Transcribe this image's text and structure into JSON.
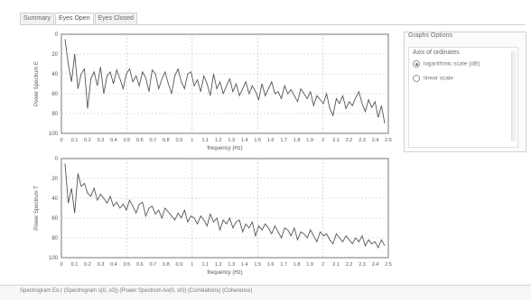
{
  "tabs": [
    {
      "label": "Summary",
      "active": false
    },
    {
      "label": "Eyes Open",
      "active": true
    },
    {
      "label": "Eyes Closed",
      "active": false
    }
  ],
  "graph_options": {
    "title": "Graphs Options",
    "section_label": "Axis of ordinates",
    "options": [
      {
        "label": "logarithmic scale (dB)",
        "selected": true
      },
      {
        "label": "linear scale",
        "selected": false
      }
    ]
  },
  "status_bar": {
    "text": "Spectrogram Eo.r  (Spectrogram s(0, s0)) (Power Spectrum Ao(0, s0)) (Correlations)  (Coherence)"
  },
  "chart_data": [
    {
      "type": "line",
      "ylabel": "Power Spectrum E",
      "xlabel": "frequency (Hz)",
      "ylim": [
        0,
        100
      ],
      "y_ticks": [
        "0",
        "20",
        "40",
        "60",
        "80",
        "100"
      ],
      "y_inverted": true,
      "x_ticks": [
        "0",
        "0.1",
        "0.2",
        "0.3",
        "0.4",
        "0.5",
        "0.6",
        "0.7",
        "0.8",
        "0.9",
        "1",
        "1.1",
        "1.2",
        "1.3",
        "1.4",
        "1.5",
        "1.6",
        "1.7",
        "1.8",
        "1.9",
        "2",
        "2.1",
        "2.2",
        "2.3",
        "2.4",
        "2.5"
      ],
      "xlim": [
        0,
        2.5
      ],
      "grid": true,
      "line_color": "#555555",
      "series": [
        {
          "values": [
            5,
            30,
            48,
            20,
            55,
            40,
            35,
            75,
            45,
            38,
            52,
            33,
            60,
            42,
            38,
            50,
            36,
            45,
            55,
            40,
            35,
            48,
            42,
            52,
            38,
            44,
            58,
            36,
            40,
            55,
            45,
            38,
            50,
            60,
            42,
            35,
            48,
            55,
            40,
            38,
            52,
            46,
            58,
            42,
            50,
            62,
            40,
            55,
            48,
            60,
            52,
            45,
            58,
            50,
            62,
            55,
            48,
            60,
            52,
            58,
            66,
            50,
            62,
            55,
            48,
            60,
            58,
            65,
            52,
            60,
            56,
            62,
            68,
            55,
            60,
            65,
            58,
            72,
            62,
            66,
            70,
            60,
            75,
            82,
            65,
            70,
            62,
            75,
            68,
            72,
            64,
            58,
            70,
            78,
            66,
            74,
            68,
            84,
            72,
            90
          ]
        }
      ]
    },
    {
      "type": "line",
      "ylabel": "Power Spectrum T",
      "xlabel": "frequency (Hz)",
      "ylim": [
        0,
        100
      ],
      "y_ticks": [
        "0",
        "20",
        "40",
        "60",
        "80",
        "100"
      ],
      "y_inverted": true,
      "x_ticks": [
        "0",
        "0.1",
        "0.2",
        "0.3",
        "0.4",
        "0.5",
        "0.6",
        "0.7",
        "0.8",
        "0.9",
        "1",
        "1.1",
        "1.2",
        "1.3",
        "1.4",
        "1.5",
        "1.6",
        "1.7",
        "1.8",
        "1.9",
        "2",
        "2.1",
        "2.2",
        "2.3",
        "2.4",
        "2.5"
      ],
      "xlim": [
        0,
        2.5
      ],
      "grid": true,
      "line_color": "#555555",
      "series": [
        {
          "values": [
            5,
            45,
            30,
            55,
            15,
            28,
            25,
            35,
            38,
            30,
            42,
            36,
            40,
            45,
            38,
            48,
            44,
            50,
            46,
            52,
            42,
            48,
            55,
            46,
            44,
            58,
            50,
            48,
            56,
            52,
            60,
            50,
            54,
            58,
            62,
            55,
            60,
            52,
            64,
            58,
            60,
            66,
            58,
            62,
            68,
            56,
            64,
            60,
            72,
            62,
            66,
            60,
            70,
            64,
            62,
            74,
            66,
            70,
            64,
            78,
            68,
            72,
            66,
            70,
            76,
            68,
            74,
            80,
            70,
            72,
            78,
            70,
            82,
            74,
            76,
            80,
            72,
            78,
            84,
            74,
            78,
            76,
            82,
            86,
            76,
            80,
            84,
            78,
            82,
            86,
            80,
            84,
            78,
            88,
            82,
            86,
            84,
            90,
            82,
            88
          ]
        }
      ]
    }
  ]
}
